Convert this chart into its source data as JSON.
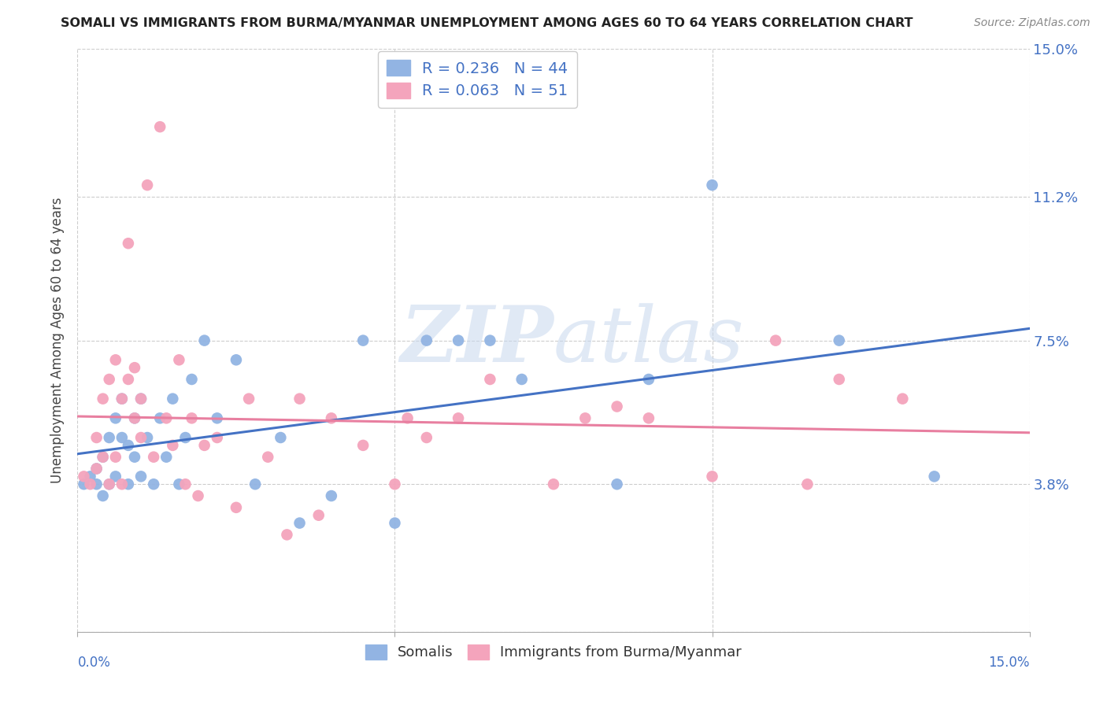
{
  "title": "SOMALI VS IMMIGRANTS FROM BURMA/MYANMAR UNEMPLOYMENT AMONG AGES 60 TO 64 YEARS CORRELATION CHART",
  "source": "Source: ZipAtlas.com",
  "ylabel": "Unemployment Among Ages 60 to 64 years",
  "xlim": [
    0.0,
    0.15
  ],
  "ylim": [
    0.0,
    0.15
  ],
  "ytick_vals": [
    0.0,
    0.038,
    0.075,
    0.112,
    0.15
  ],
  "ytick_labels": [
    "",
    "3.8%",
    "7.5%",
    "11.2%",
    "15.0%"
  ],
  "somali_color": "#92b4e3",
  "burma_color": "#f4a4bc",
  "somali_line_color": "#4472c4",
  "burma_line_color": "#e87fa0",
  "R_somali": 0.236,
  "N_somali": 44,
  "R_burma": 0.063,
  "N_burma": 51,
  "legend_label_somali": "Somalis",
  "legend_label_burma": "Immigrants from Burma/Myanmar",
  "background_color": "#ffffff",
  "grid_color": "#c8c8c8",
  "somali_x": [
    0.001,
    0.002,
    0.003,
    0.003,
    0.004,
    0.004,
    0.005,
    0.005,
    0.006,
    0.006,
    0.007,
    0.007,
    0.008,
    0.008,
    0.009,
    0.009,
    0.01,
    0.01,
    0.011,
    0.012,
    0.013,
    0.014,
    0.015,
    0.016,
    0.017,
    0.018,
    0.02,
    0.022,
    0.025,
    0.028,
    0.032,
    0.035,
    0.04,
    0.045,
    0.05,
    0.055,
    0.06,
    0.065,
    0.07,
    0.085,
    0.09,
    0.1,
    0.12,
    0.135
  ],
  "somali_y": [
    0.038,
    0.04,
    0.038,
    0.042,
    0.045,
    0.035,
    0.038,
    0.05,
    0.04,
    0.055,
    0.05,
    0.06,
    0.038,
    0.048,
    0.045,
    0.055,
    0.04,
    0.06,
    0.05,
    0.038,
    0.055,
    0.045,
    0.06,
    0.038,
    0.05,
    0.065,
    0.075,
    0.055,
    0.07,
    0.038,
    0.05,
    0.028,
    0.035,
    0.075,
    0.028,
    0.075,
    0.075,
    0.075,
    0.065,
    0.038,
    0.065,
    0.115,
    0.075,
    0.04
  ],
  "burma_x": [
    0.001,
    0.002,
    0.003,
    0.003,
    0.004,
    0.004,
    0.005,
    0.005,
    0.006,
    0.006,
    0.007,
    0.007,
    0.008,
    0.008,
    0.009,
    0.009,
    0.01,
    0.01,
    0.011,
    0.012,
    0.013,
    0.014,
    0.015,
    0.016,
    0.017,
    0.018,
    0.019,
    0.02,
    0.022,
    0.025,
    0.027,
    0.03,
    0.033,
    0.035,
    0.038,
    0.04,
    0.045,
    0.05,
    0.052,
    0.055,
    0.06,
    0.065,
    0.075,
    0.08,
    0.085,
    0.09,
    0.1,
    0.11,
    0.115,
    0.12,
    0.13
  ],
  "burma_y": [
    0.04,
    0.038,
    0.05,
    0.042,
    0.045,
    0.06,
    0.038,
    0.065,
    0.07,
    0.045,
    0.038,
    0.06,
    0.065,
    0.1,
    0.055,
    0.068,
    0.05,
    0.06,
    0.115,
    0.045,
    0.13,
    0.055,
    0.048,
    0.07,
    0.038,
    0.055,
    0.035,
    0.048,
    0.05,
    0.032,
    0.06,
    0.045,
    0.025,
    0.06,
    0.03,
    0.055,
    0.048,
    0.038,
    0.055,
    0.05,
    0.055,
    0.065,
    0.038,
    0.055,
    0.058,
    0.055,
    0.04,
    0.075,
    0.038,
    0.065,
    0.06
  ]
}
